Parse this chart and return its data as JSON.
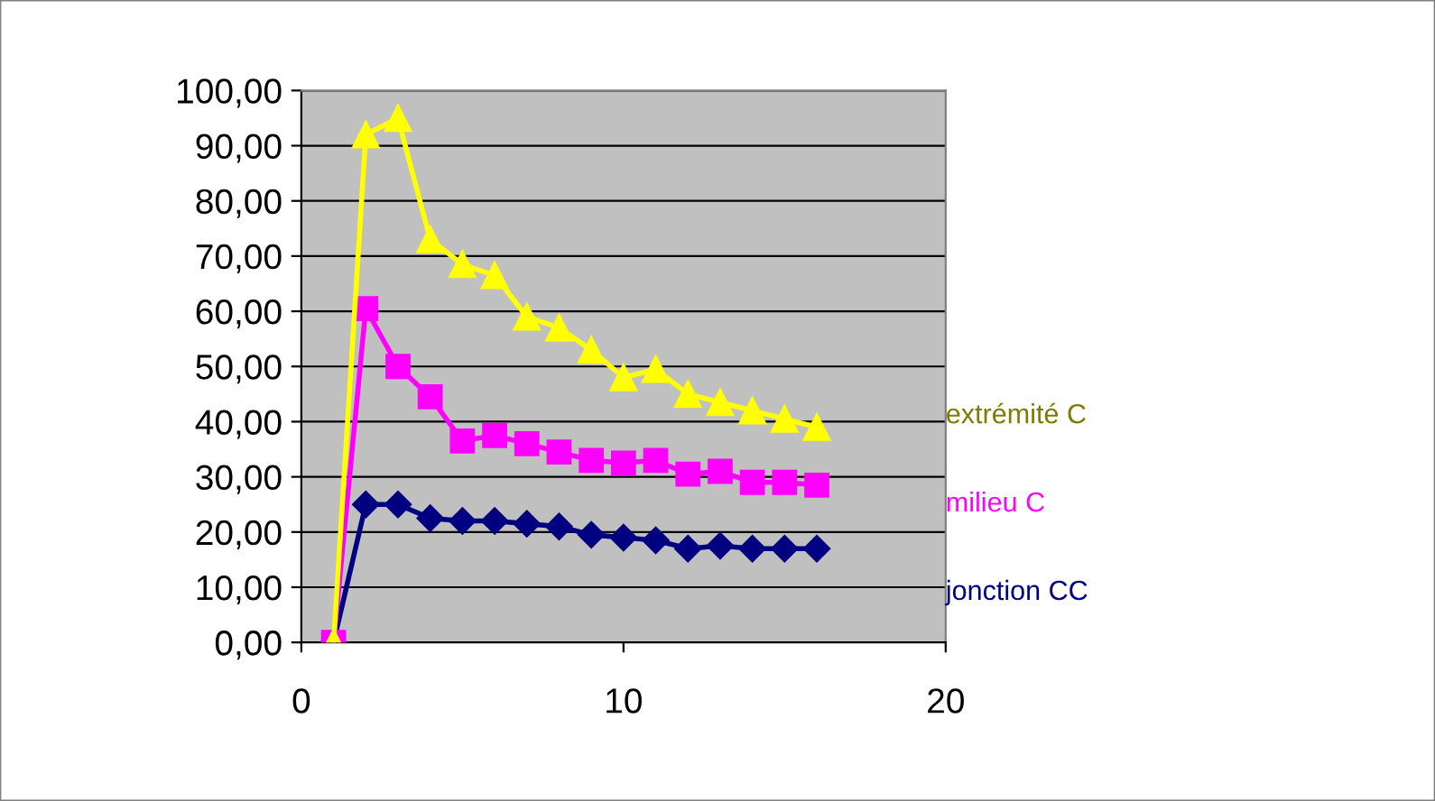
{
  "chart_data": {
    "type": "line",
    "x": [
      1,
      2,
      3,
      4,
      5,
      6,
      7,
      8,
      9,
      10,
      11,
      12,
      13,
      14,
      15,
      16
    ],
    "series": [
      {
        "name": "extrémité C",
        "color": "#ffff00",
        "marker": "triangle",
        "values": [
          0,
          92,
          95,
          73,
          68.5,
          66.5,
          59,
          57,
          53,
          48,
          49.5,
          45,
          43.5,
          42,
          40.5,
          39
        ]
      },
      {
        "name": "milieu C",
        "color": "#ff00ff",
        "marker": "square",
        "values": [
          0,
          60.5,
          50,
          44.5,
          36.5,
          37.5,
          36,
          34.5,
          33,
          32.5,
          33,
          30.5,
          31,
          29,
          29,
          28.5
        ]
      },
      {
        "name": "jonction CC",
        "color": "#000080",
        "marker": "diamond",
        "values": [
          0,
          25,
          25,
          22.5,
          22,
          22,
          21.5,
          21,
          19.5,
          19,
          18.5,
          17,
          17.5,
          17,
          17,
          17
        ]
      }
    ],
    "xlim": [
      0,
      20
    ],
    "xticks": [
      0,
      10,
      20
    ],
    "ylim": [
      0,
      100
    ],
    "yticks": [
      {
        "value": 0,
        "label": "0,00"
      },
      {
        "value": 10,
        "label": "10,00"
      },
      {
        "value": 20,
        "label": "20,00"
      },
      {
        "value": 30,
        "label": "30,00"
      },
      {
        "value": 40,
        "label": "40,00"
      },
      {
        "value": 50,
        "label": "50,00"
      },
      {
        "value": 60,
        "label": "60,00"
      },
      {
        "value": 70,
        "label": "70,00"
      },
      {
        "value": 80,
        "label": "80,00"
      },
      {
        "value": 90,
        "label": "90,00"
      },
      {
        "value": 100,
        "label": "100,00"
      }
    ],
    "grid": "y",
    "legend": false
  }
}
